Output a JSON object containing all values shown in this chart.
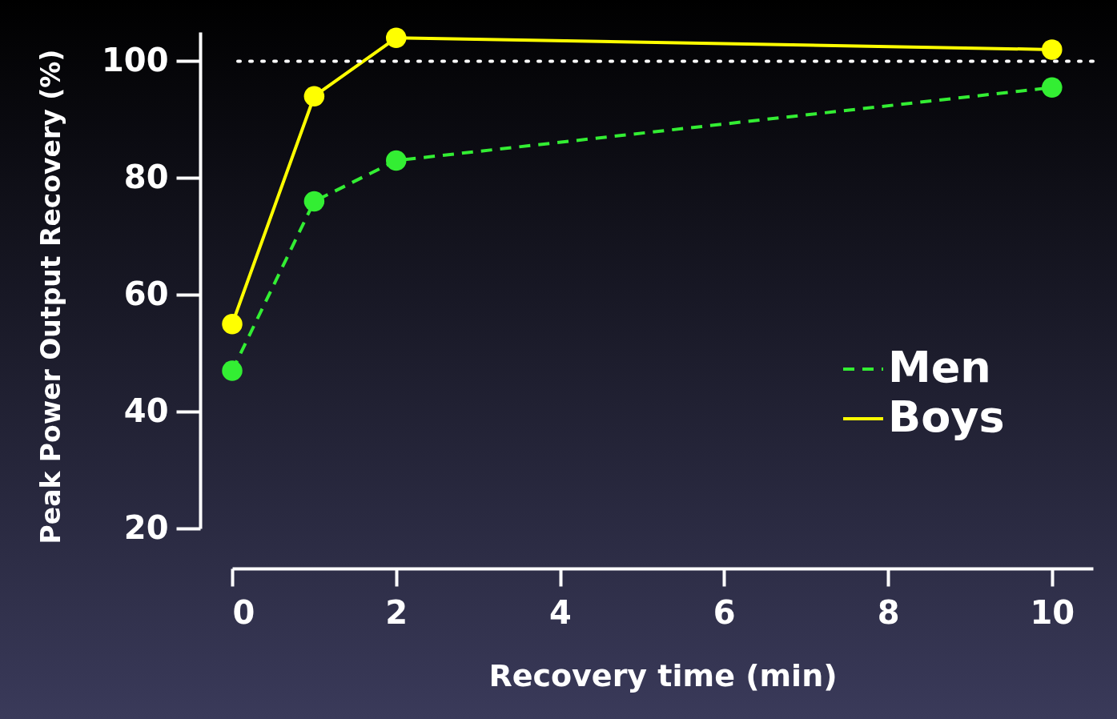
{
  "chart_data": {
    "type": "line",
    "xlabel": "Recovery time (min)",
    "ylabel": "Peak Power Output  Recovery (%)",
    "x": [
      0,
      1,
      2,
      10
    ],
    "series": [
      {
        "name": "Men",
        "color": "#33ee33",
        "line_style": "dashed",
        "values": [
          47,
          76,
          83,
          95.5
        ]
      },
      {
        "name": "Boys",
        "color": "#ffff00",
        "line_style": "solid",
        "values": [
          55,
          94,
          104,
          102
        ]
      }
    ],
    "xlim": [
      0,
      10.5
    ],
    "xticks": [
      0,
      2,
      4,
      6,
      8,
      10
    ],
    "ylim": [
      20,
      105
    ],
    "yticks": [
      20,
      40,
      60,
      80,
      100
    ],
    "ref_lines": [
      {
        "axis": "y",
        "value": 100,
        "color": "#ffffff",
        "line_style": "dotted"
      }
    ],
    "marker": "circle",
    "legend": "bottom right",
    "grid": false
  }
}
